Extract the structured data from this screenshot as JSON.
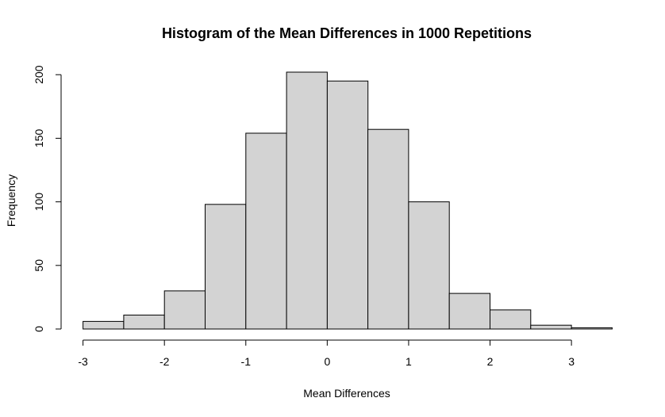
{
  "chart_data": {
    "type": "bar",
    "title": "Histogram of the Mean Differences in 1000 Repetitions",
    "xlabel": "Mean Differences",
    "ylabel": "Frequency",
    "bins": [
      {
        "start": -3.0,
        "end": -2.5,
        "count": 6
      },
      {
        "start": -2.5,
        "end": -2.0,
        "count": 11
      },
      {
        "start": -2.0,
        "end": -1.5,
        "count": 30
      },
      {
        "start": -1.5,
        "end": -1.0,
        "count": 98
      },
      {
        "start": -1.0,
        "end": -0.5,
        "count": 154
      },
      {
        "start": -0.5,
        "end": 0.0,
        "count": 202
      },
      {
        "start": 0.0,
        "end": 0.5,
        "count": 195
      },
      {
        "start": 0.5,
        "end": 1.0,
        "count": 157
      },
      {
        "start": 1.0,
        "end": 1.5,
        "count": 100
      },
      {
        "start": 1.5,
        "end": 2.0,
        "count": 28
      },
      {
        "start": 2.0,
        "end": 2.5,
        "count": 15
      },
      {
        "start": 2.5,
        "end": 3.0,
        "count": 3
      },
      {
        "start": 3.0,
        "end": 3.5,
        "count": 1
      }
    ],
    "xticks": [
      -3,
      -2,
      -1,
      0,
      1,
      2,
      3
    ],
    "xtick_labels": [
      "-3",
      "-2",
      "-1",
      "0",
      "1",
      "2",
      "3"
    ],
    "yticks": [
      0,
      50,
      100,
      150,
      200
    ],
    "ytick_labels": [
      "0",
      "50",
      "100",
      "150",
      "200"
    ],
    "xlim": [
      -3,
      3.5
    ],
    "ylim": [
      0,
      202
    ],
    "grid": false,
    "legend": "none",
    "colors": {
      "bar_fill": "#d3d3d3",
      "bar_stroke": "#000000"
    }
  }
}
